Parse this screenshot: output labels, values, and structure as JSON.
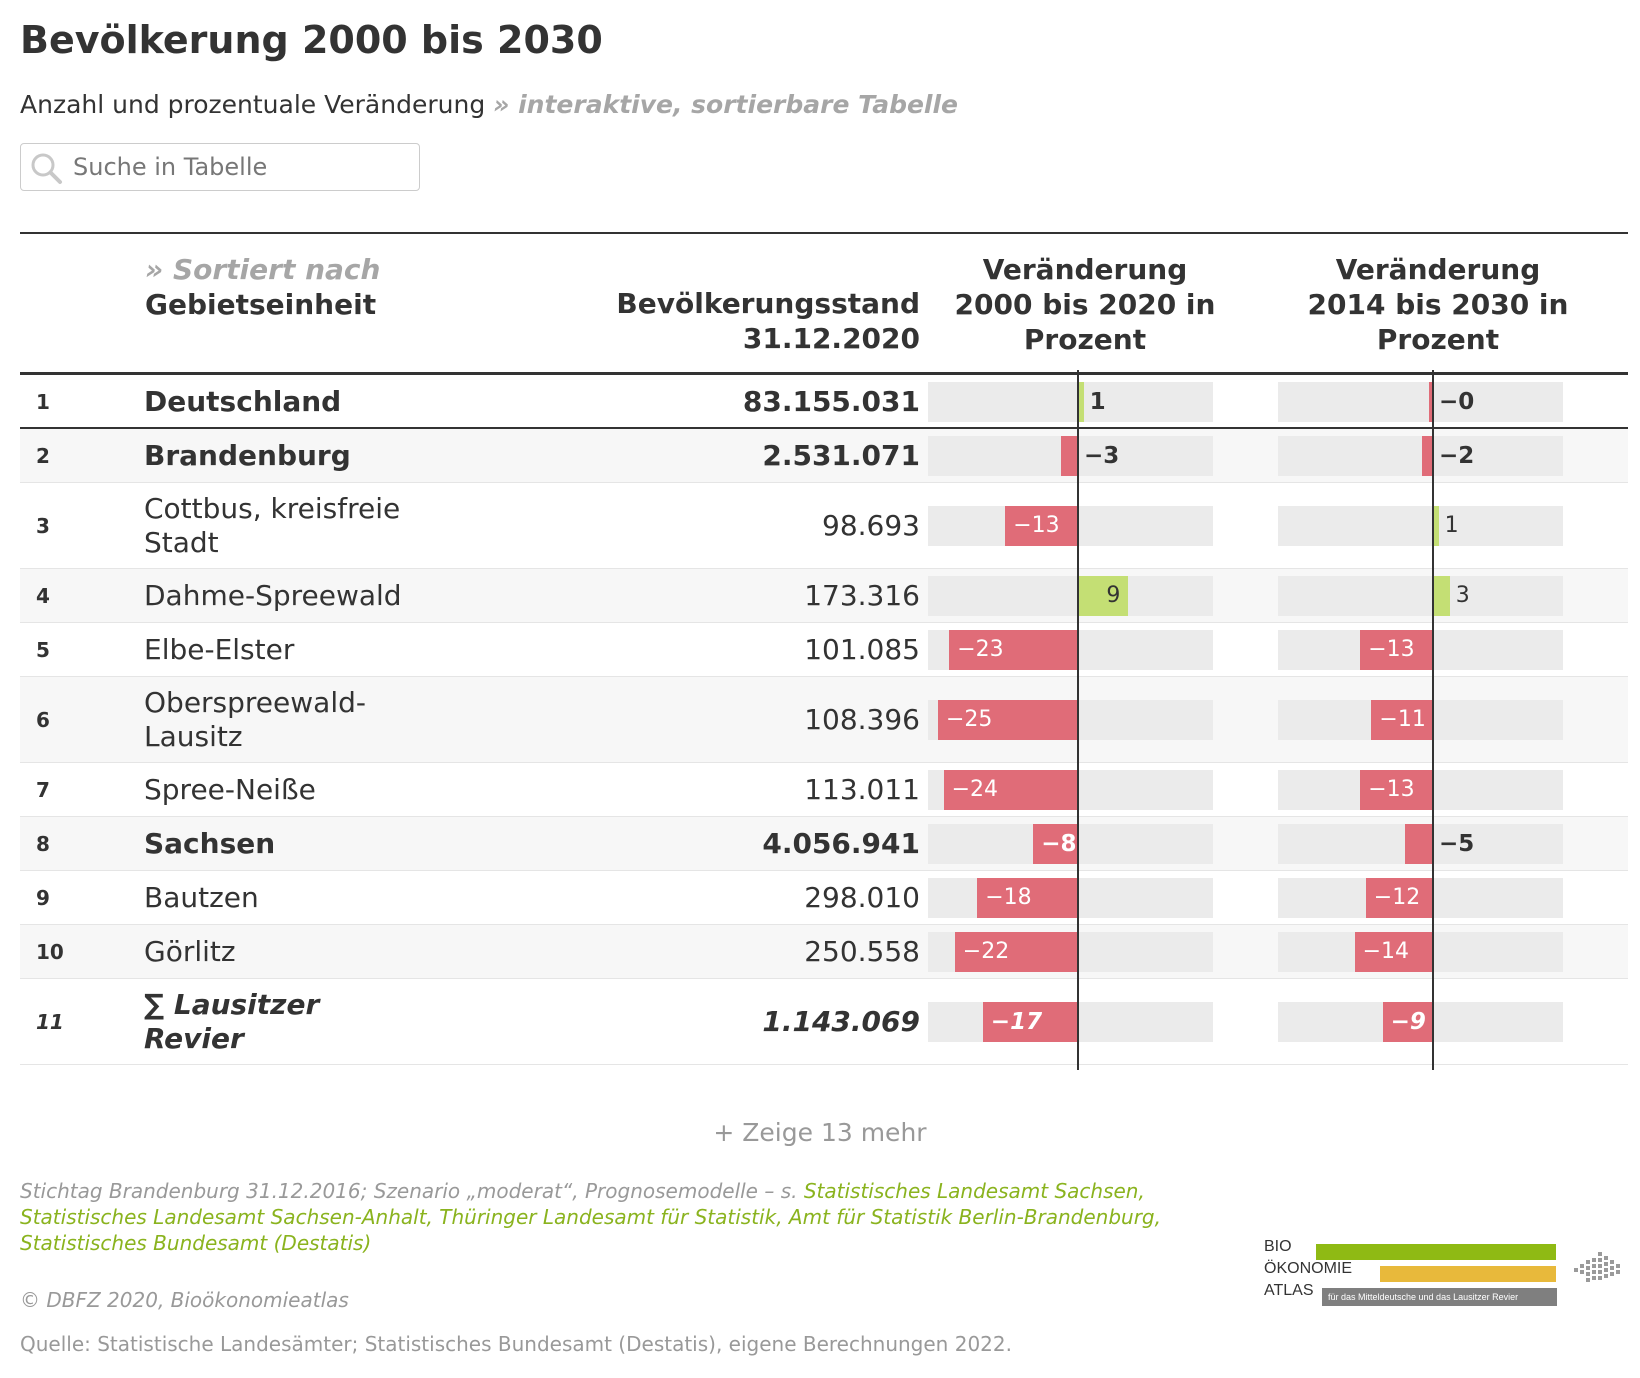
{
  "title": "Bevölkerung 2000 bis 2030",
  "subtitle": "Anzahl und prozentuale Veränderung",
  "subtitle_hint": "» interaktive, sortierbare Tabelle",
  "search": {
    "placeholder": "Suche in Tabelle"
  },
  "columns": {
    "sort_note": "» Sortiert nach",
    "name": "Gebietseinheit",
    "pop": [
      "Bevölkerungsstand",
      "31.12.2020"
    ],
    "change1": [
      "Veränderung",
      "2000 bis 2020 in",
      "Prozent"
    ],
    "change2": [
      "Veränderung",
      "2014 bis 2030 in",
      "Prozent"
    ]
  },
  "colors": {
    "negative": "#e06c78",
    "positive": "#c4df74",
    "track": "#ebebeb",
    "axis": "#333333",
    "link": "#8ab31e"
  },
  "rows": [
    {
      "num": "1",
      "name": [
        "Deutschland"
      ],
      "pop": "83.155.031",
      "c1": 1,
      "c1_label": "1",
      "c2": -0.3,
      "c2_label": "−0",
      "style": "bold"
    },
    {
      "num": "2",
      "name": [
        "Brandenburg"
      ],
      "pop": "2.531.071",
      "c1": -3,
      "c1_label": "−3",
      "c2": -2,
      "c2_label": "−2",
      "style": "bold"
    },
    {
      "num": "3",
      "name": [
        "Cottbus, kreisfreie",
        "Stadt"
      ],
      "pop": "98.693",
      "c1": -13,
      "c1_label": "−13",
      "c2": 1,
      "c2_label": "1",
      "style": "normal"
    },
    {
      "num": "4",
      "name": [
        "Dahme-Spreewald"
      ],
      "pop": "173.316",
      "c1": 9,
      "c1_label": "9",
      "c2": 3,
      "c2_label": "3",
      "style": "normal"
    },
    {
      "num": "5",
      "name": [
        "Elbe-Elster"
      ],
      "pop": "101.085",
      "c1": -23,
      "c1_label": "−23",
      "c2": -13,
      "c2_label": "−13",
      "style": "normal"
    },
    {
      "num": "6",
      "name": [
        "Oberspreewald-",
        "Lausitz"
      ],
      "pop": "108.396",
      "c1": -25,
      "c1_label": "−25",
      "c2": -11,
      "c2_label": "−11",
      "style": "normal"
    },
    {
      "num": "7",
      "name": [
        "Spree-Neiße"
      ],
      "pop": "113.011",
      "c1": -24,
      "c1_label": "−24",
      "c2": -13,
      "c2_label": "−13",
      "style": "normal"
    },
    {
      "num": "8",
      "name": [
        "Sachsen"
      ],
      "pop": "4.056.941",
      "c1": -8,
      "c1_label": "−8",
      "c2": -5,
      "c2_label": "−5",
      "style": "bold"
    },
    {
      "num": "9",
      "name": [
        "Bautzen"
      ],
      "pop": "298.010",
      "c1": -18,
      "c1_label": "−18",
      "c2": -12,
      "c2_label": "−12",
      "style": "normal"
    },
    {
      "num": "10",
      "name": [
        "Görlitz"
      ],
      "pop": "250.558",
      "c1": -22,
      "c1_label": "−22",
      "c2": -14,
      "c2_label": "−14",
      "style": "normal"
    },
    {
      "num": "11",
      "name": [
        "∑ Lausitzer",
        "Revier"
      ],
      "pop": "1.143.069",
      "c1": -17,
      "c1_label": "−17",
      "c2": -9,
      "c2_label": "−9",
      "style": "total"
    }
  ],
  "show_more": "+ Zeige 13 mehr",
  "note": {
    "prefix": "Stichtag Brandenburg 31.12.2016; Szenario „moderat“, Prognosemodelle – s. ",
    "links": [
      "Statistisches Landesamt Sachsen",
      "Statistisches Landesamt Sachsen-Anhalt",
      "Thüringer Landesamt für Statistik",
      "Amt für Statistik Berlin-Brandenburg",
      "Statistisches Bundesamt (Destatis)"
    ],
    "sep": ", "
  },
  "copyright": "© DBFZ 2020, Bioökonomieatlas",
  "source": "Quelle: Statistische Landesämter; Statistisches Bundesamt (Destatis), eigene Berechnungen 2022.",
  "logo": {
    "line1": "BIO",
    "line2": "ÖKONOMIE",
    "line3": "ATLAS",
    "tagline": "für das Mitteldeutsche und das Lausitzer Revier",
    "green": "#8fba14",
    "yellow": "#e8b93b"
  }
}
